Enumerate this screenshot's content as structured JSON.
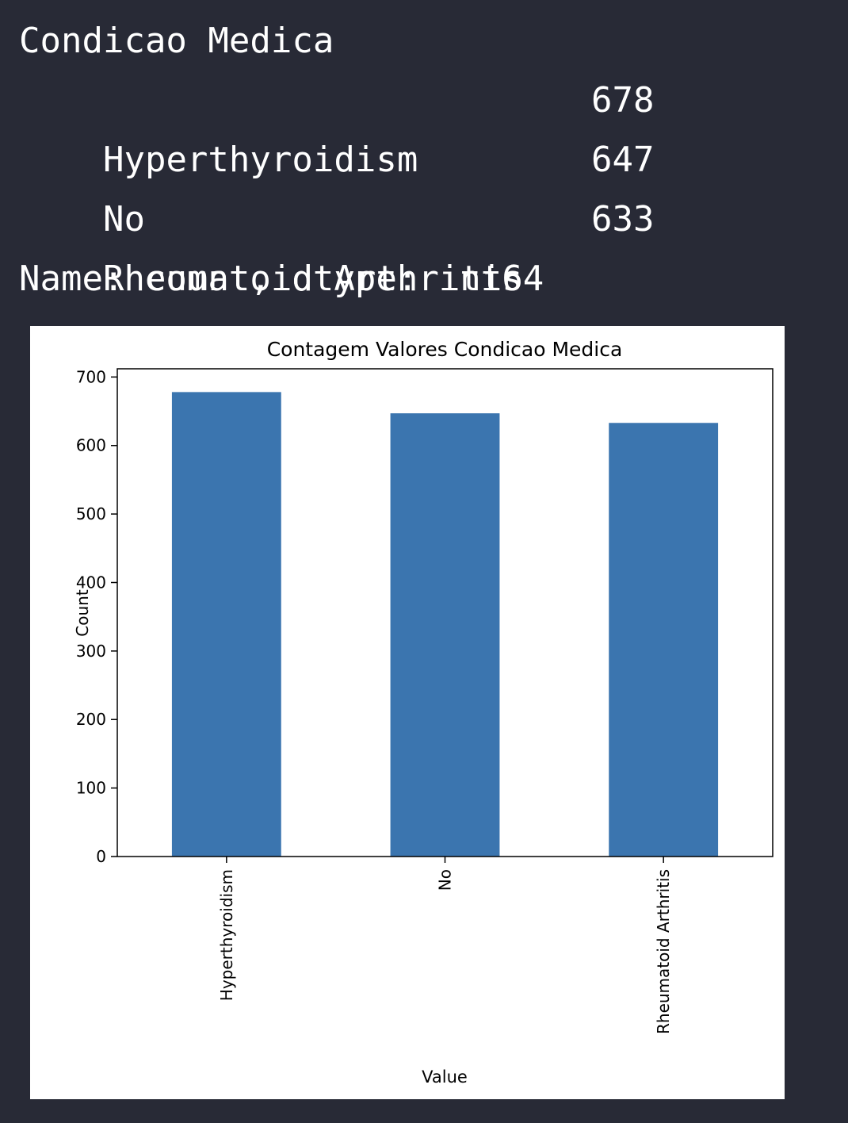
{
  "output": {
    "header": "Condicao Medica",
    "rows": [
      {
        "label": "Hyperthyroidism",
        "value": "678"
      },
      {
        "label": "No",
        "value": "647"
      },
      {
        "label": "Rheumatoid Arthritis",
        "value": "633"
      }
    ],
    "footer": "Name: count, dtype: int64"
  },
  "chart_data": {
    "type": "bar",
    "title": "Contagem Valores Condicao Medica",
    "xlabel": "Value",
    "ylabel": "Count",
    "categories": [
      "Hyperthyroidism",
      "No",
      "Rheumatoid Arthritis"
    ],
    "values": [
      678,
      647,
      633
    ],
    "ylim": [
      0,
      712
    ],
    "yticks": [
      0,
      100,
      200,
      300,
      400,
      500,
      600,
      700
    ],
    "bar_color": "#3b75af",
    "grid": false,
    "legend": "none"
  }
}
